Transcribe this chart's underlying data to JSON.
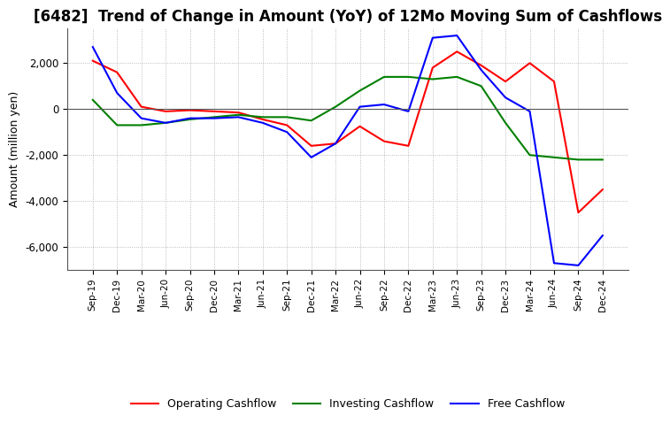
{
  "title": "[6482]  Trend of Change in Amount (YoY) of 12Mo Moving Sum of Cashflows",
  "ylabel": "Amount (million yen)",
  "x_labels": [
    "Sep-19",
    "Dec-19",
    "Mar-20",
    "Jun-20",
    "Sep-20",
    "Dec-20",
    "Mar-21",
    "Jun-21",
    "Sep-21",
    "Dec-21",
    "Mar-22",
    "Jun-22",
    "Sep-22",
    "Dec-22",
    "Mar-23",
    "Jun-23",
    "Sep-23",
    "Dec-23",
    "Mar-24",
    "Jun-24",
    "Sep-24",
    "Dec-24"
  ],
  "operating": [
    2100,
    1600,
    100,
    -100,
    -50,
    -100,
    -150,
    -450,
    -700,
    -1600,
    -1500,
    -750,
    -1400,
    -1600,
    1800,
    2500,
    1900,
    1200,
    2000,
    1200,
    -4500,
    -3500
  ],
  "investing": [
    400,
    -700,
    -700,
    -600,
    -450,
    -350,
    -250,
    -350,
    -350,
    -500,
    100,
    800,
    1400,
    1400,
    1300,
    1400,
    1000,
    -600,
    -2000,
    -2100,
    -2200,
    -2200
  ],
  "free": [
    2700,
    700,
    -400,
    -600,
    -400,
    -400,
    -350,
    -600,
    -1000,
    -2100,
    -1500,
    100,
    200,
    -100,
    3100,
    3200,
    1700,
    500,
    -100,
    -6700,
    -6800,
    -5500
  ],
  "operating_color": "#ff0000",
  "investing_color": "#008000",
  "free_color": "#0000ff",
  "ylim": [
    -7000,
    3500
  ],
  "yticks": [
    -6000,
    -4000,
    -2000,
    0,
    2000
  ],
  "bg_color": "#ffffff",
  "grid_color": "#aaaaaa",
  "title_fontsize": 12,
  "label_fontsize": 9
}
